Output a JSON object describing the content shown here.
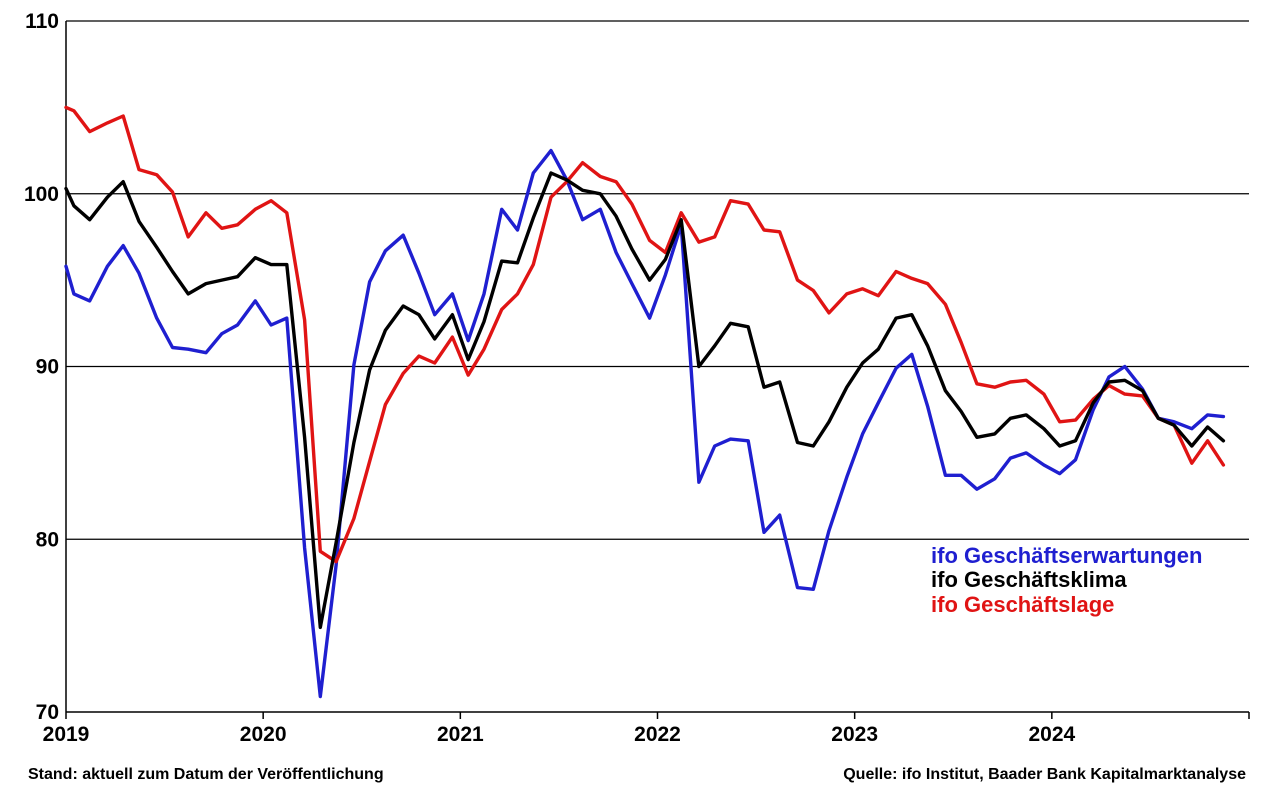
{
  "colors": {
    "exp": "#1f1fd0",
    "klima": "#000000",
    "lage": "#e01414",
    "grid": "#000000"
  },
  "footer": {
    "left": "Stand: aktuell zum Datum der Veröffentlichung",
    "right": "Quelle: ifo Institut, Baader Bank Kapitalmarktanalyse"
  },
  "chart_data": {
    "type": "line",
    "title": "",
    "xlabel": "",
    "ylabel": "",
    "ylim": [
      70,
      110
    ],
    "yticks": [
      70,
      80,
      90,
      100,
      110
    ],
    "xlim": [
      2019.0,
      2025.0
    ],
    "xticks": [
      {
        "value": 2019,
        "label": "2019"
      },
      {
        "value": 2020,
        "label": "2020"
      },
      {
        "value": 2021,
        "label": "2021"
      },
      {
        "value": 2022,
        "label": "2022"
      },
      {
        "value": 2023,
        "label": "2023"
      },
      {
        "value": 2024,
        "label": "2024"
      }
    ],
    "grid": "horizontal",
    "legend_position": "bottom-right",
    "series": [
      {
        "name": "ifo Geschäftserwartungen",
        "color": "#1f1fd0",
        "x": [
          2019.0,
          2019.04,
          2019.12,
          2019.21,
          2019.29,
          2019.37,
          2019.46,
          2019.54,
          2019.62,
          2019.71,
          2019.79,
          2019.87,
          2019.96,
          2020.04,
          2020.12,
          2020.21,
          2020.29,
          2020.37,
          2020.46,
          2020.54,
          2020.62,
          2020.71,
          2020.79,
          2020.87,
          2020.96,
          2021.04,
          2021.12,
          2021.21,
          2021.29,
          2021.37,
          2021.46,
          2021.54,
          2021.62,
          2021.71,
          2021.79,
          2021.87,
          2021.96,
          2022.04,
          2022.12,
          2022.21,
          2022.29,
          2022.37,
          2022.46,
          2022.54,
          2022.62,
          2022.71,
          2022.79,
          2022.87,
          2022.96,
          2023.04,
          2023.12,
          2023.21,
          2023.29,
          2023.37,
          2023.46,
          2023.54,
          2023.62,
          2023.71,
          2023.79,
          2023.87,
          2023.96,
          2024.04,
          2024.12,
          2024.21,
          2024.29,
          2024.37,
          2024.46,
          2024.54,
          2024.62,
          2024.71,
          2024.79,
          2024.87
        ],
        "values": [
          95.8,
          94.2,
          93.8,
          95.8,
          97.0,
          95.4,
          92.8,
          91.1,
          91.0,
          90.8,
          91.9,
          92.4,
          93.8,
          92.4,
          92.8,
          79.5,
          70.9,
          78.5,
          90.1,
          94.9,
          96.7,
          97.6,
          95.4,
          93.0,
          94.2,
          91.5,
          94.2,
          99.1,
          97.9,
          101.2,
          102.5,
          100.8,
          98.5,
          99.1,
          96.6,
          94.8,
          92.8,
          95.3,
          98.2,
          83.3,
          85.4,
          85.8,
          85.7,
          80.4,
          81.4,
          77.2,
          77.1,
          80.5,
          83.6,
          86.1,
          87.9,
          89.9,
          90.7,
          87.7,
          83.7,
          83.7,
          82.9,
          83.5,
          84.7,
          85.0,
          84.3,
          83.8,
          84.6,
          87.5,
          89.4,
          90.0,
          88.7,
          87.0,
          86.8,
          86.4,
          87.2,
          87.1
        ]
      },
      {
        "name": "ifo Geschäftsklima",
        "color": "#000000",
        "x": [
          2019.0,
          2019.04,
          2019.12,
          2019.21,
          2019.29,
          2019.37,
          2019.46,
          2019.54,
          2019.62,
          2019.71,
          2019.79,
          2019.87,
          2019.96,
          2020.04,
          2020.12,
          2020.21,
          2020.29,
          2020.37,
          2020.46,
          2020.54,
          2020.62,
          2020.71,
          2020.79,
          2020.87,
          2020.96,
          2021.04,
          2021.12,
          2021.21,
          2021.29,
          2021.37,
          2021.46,
          2021.54,
          2021.62,
          2021.71,
          2021.79,
          2021.87,
          2021.96,
          2022.04,
          2022.12,
          2022.21,
          2022.29,
          2022.37,
          2022.46,
          2022.54,
          2022.62,
          2022.71,
          2022.79,
          2022.87,
          2022.96,
          2023.04,
          2023.12,
          2023.21,
          2023.29,
          2023.37,
          2023.46,
          2023.54,
          2023.62,
          2023.71,
          2023.79,
          2023.87,
          2023.96,
          2024.04,
          2024.12,
          2024.21,
          2024.29,
          2024.37,
          2024.46,
          2024.54,
          2024.62,
          2024.71,
          2024.79,
          2024.87
        ],
        "values": [
          100.3,
          99.3,
          98.5,
          99.8,
          100.7,
          98.4,
          96.9,
          95.5,
          94.2,
          94.8,
          95.0,
          95.2,
          96.3,
          95.9,
          95.9,
          85.9,
          74.9,
          79.8,
          85.6,
          89.8,
          92.1,
          93.5,
          93.0,
          91.6,
          93.0,
          90.4,
          92.6,
          96.1,
          96.0,
          98.6,
          101.2,
          100.8,
          100.2,
          100.0,
          98.7,
          96.8,
          95.0,
          96.2,
          98.5,
          90.0,
          91.2,
          92.5,
          92.3,
          88.8,
          89.1,
          85.6,
          85.4,
          86.8,
          88.8,
          90.2,
          91.0,
          92.8,
          93.0,
          91.2,
          88.6,
          87.4,
          85.9,
          86.1,
          87.0,
          87.2,
          86.4,
          85.4,
          85.7,
          87.9,
          89.1,
          89.2,
          88.6,
          87.0,
          86.6,
          85.4,
          86.5,
          85.7
        ]
      },
      {
        "name": "ifo Geschäftslage",
        "color": "#e01414",
        "x": [
          2019.0,
          2019.04,
          2019.12,
          2019.21,
          2019.29,
          2019.37,
          2019.46,
          2019.54,
          2019.62,
          2019.71,
          2019.79,
          2019.87,
          2019.96,
          2020.04,
          2020.12,
          2020.21,
          2020.29,
          2020.37,
          2020.46,
          2020.54,
          2020.62,
          2020.71,
          2020.79,
          2020.87,
          2020.96,
          2021.04,
          2021.12,
          2021.21,
          2021.29,
          2021.37,
          2021.46,
          2021.54,
          2021.62,
          2021.71,
          2021.79,
          2021.87,
          2021.96,
          2022.04,
          2022.12,
          2022.21,
          2022.29,
          2022.37,
          2022.46,
          2022.54,
          2022.62,
          2022.71,
          2022.79,
          2022.87,
          2022.96,
          2023.04,
          2023.12,
          2023.21,
          2023.29,
          2023.37,
          2023.46,
          2023.54,
          2023.62,
          2023.71,
          2023.79,
          2023.87,
          2023.96,
          2024.04,
          2024.12,
          2024.21,
          2024.29,
          2024.37,
          2024.46,
          2024.54,
          2024.62,
          2024.71,
          2024.79,
          2024.87
        ],
        "values": [
          105.0,
          104.8,
          103.6,
          104.1,
          104.5,
          101.4,
          101.1,
          100.1,
          97.5,
          98.9,
          98.0,
          98.2,
          99.1,
          99.6,
          98.9,
          92.7,
          79.3,
          78.7,
          81.2,
          84.5,
          87.8,
          89.6,
          90.6,
          90.2,
          91.7,
          89.5,
          91.0,
          93.3,
          94.2,
          95.9,
          99.8,
          100.7,
          101.8,
          101.0,
          100.7,
          99.4,
          97.3,
          96.6,
          98.9,
          97.2,
          97.5,
          99.6,
          99.4,
          97.9,
          97.8,
          95.0,
          94.4,
          93.1,
          94.2,
          94.5,
          94.1,
          95.5,
          95.1,
          94.8,
          93.6,
          91.4,
          89.0,
          88.8,
          89.1,
          89.2,
          88.4,
          86.8,
          86.9,
          88.1,
          88.9,
          88.4,
          88.3,
          87.0,
          86.6,
          84.4,
          85.7,
          84.3
        ]
      }
    ]
  }
}
